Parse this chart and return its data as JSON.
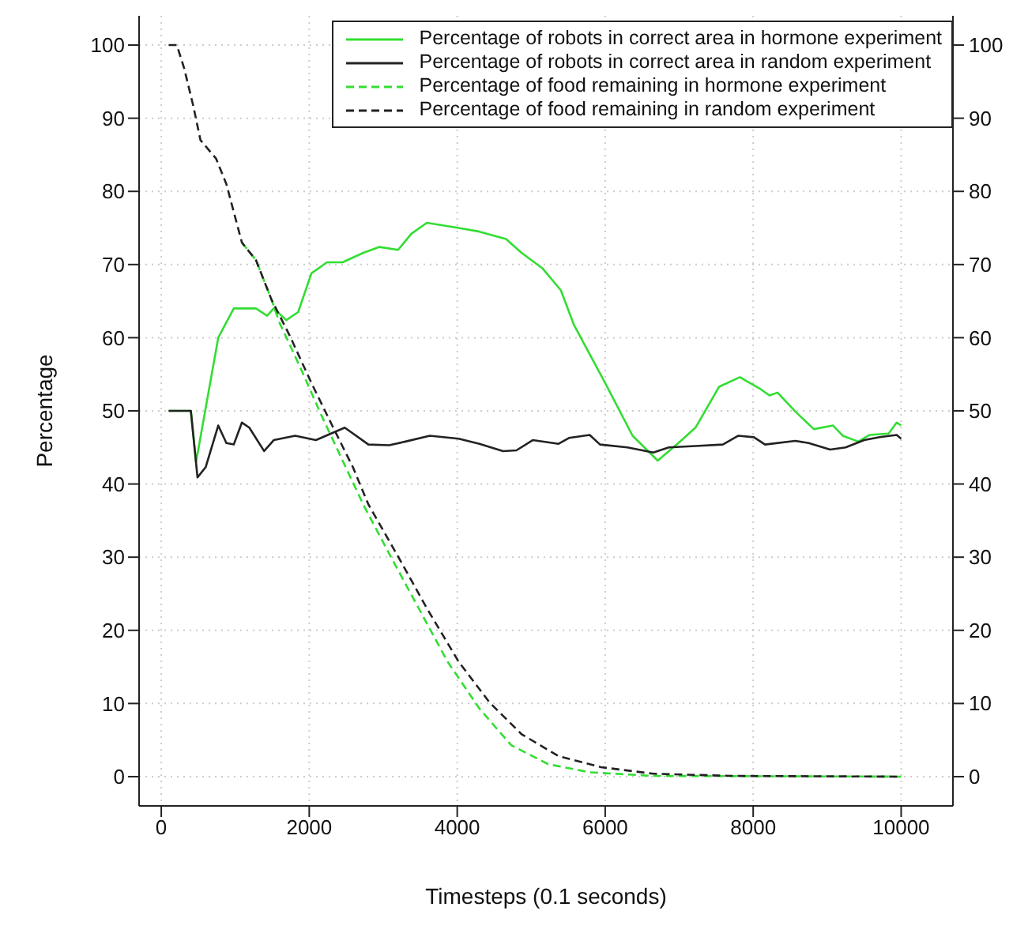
{
  "chart_data": {
    "type": "line",
    "xlabel": "Timesteps (0.1 seconds)",
    "ylabel": "Percentage",
    "xlim": [
      -300,
      10700
    ],
    "xticks": [
      0,
      2000,
      4000,
      6000,
      8000,
      10000
    ],
    "ylim": [
      -4,
      104
    ],
    "yticks": [
      0,
      10,
      20,
      30,
      40,
      50,
      60,
      70,
      80,
      90,
      100
    ],
    "y2lim": [
      -4,
      104
    ],
    "y2ticks": [
      0,
      10,
      20,
      30,
      40,
      50,
      60,
      70,
      80,
      90,
      100
    ],
    "grid": true,
    "legend": "top right",
    "series": [
      {
        "name": "Percentage of robots in correct area in hormone experiment",
        "color": "#33dd33",
        "line_style": "solid",
        "x": [
          100,
          400,
          470,
          770,
          980,
          1280,
          1430,
          1520,
          1690,
          1850,
          2030,
          2240,
          2450,
          2730,
          2950,
          3200,
          3380,
          3590,
          4020,
          4300,
          4660,
          4870,
          5150,
          5400,
          5580,
          6000,
          6370,
          6710,
          7010,
          7220,
          7540,
          7820,
          8080,
          8220,
          8330,
          8570,
          8820,
          9080,
          9210,
          9420,
          9570,
          9830,
          9940,
          10000
        ],
        "values": [
          50,
          50,
          43,
          60,
          64,
          64,
          63,
          64,
          62.4,
          63.5,
          68.8,
          70.3,
          70.3,
          71.6,
          72.4,
          72,
          74.2,
          75.7,
          75,
          74.5,
          73.5,
          71.6,
          69.5,
          66.5,
          61.7,
          53.8,
          46.6,
          43.2,
          45.8,
          47.7,
          53.3,
          54.6,
          53.1,
          52.1,
          52.5,
          49.9,
          47.5,
          48,
          46.6,
          45.8,
          46.7,
          46.9,
          48.4,
          48
        ]
      },
      {
        "name": "Percentage of robots in correct area in random experiment",
        "color": "#222222",
        "line_style": "solid",
        "x": [
          100,
          400,
          490,
          600,
          770,
          880,
          980,
          1090,
          1190,
          1390,
          1520,
          1810,
          2090,
          2480,
          2800,
          3080,
          3300,
          3630,
          4020,
          4300,
          4620,
          4800,
          5020,
          5370,
          5510,
          5790,
          5930,
          6300,
          6650,
          6860,
          7220,
          7590,
          7800,
          8010,
          8160,
          8570,
          8750,
          9040,
          9250,
          9500,
          9710,
          9940,
          10000
        ],
        "values": [
          50,
          50,
          40.9,
          42.3,
          48,
          45.6,
          45.4,
          48.4,
          47.7,
          44.5,
          46,
          46.6,
          46,
          47.7,
          45.4,
          45.3,
          45.8,
          46.6,
          46.2,
          45.5,
          44.5,
          44.6,
          46,
          45.5,
          46.3,
          46.7,
          45.4,
          45,
          44.3,
          45,
          45.2,
          45.4,
          46.6,
          46.4,
          45.4,
          45.9,
          45.6,
          44.7,
          45,
          46,
          46.4,
          46.7,
          46.2
        ]
      },
      {
        "name": "Percentage of food remaining in hormone experiment",
        "color": "#33dd33",
        "line_style": "dashed",
        "x": [
          1090,
          1280,
          1490,
          1600,
          1880,
          2160,
          2460,
          2730,
          3100,
          3480,
          3870,
          4300,
          4730,
          5230,
          5790,
          6650,
          10000
        ],
        "values": [
          73,
          70.6,
          65.2,
          62,
          55.9,
          49.5,
          43,
          37.2,
          30.1,
          23,
          15.7,
          9.3,
          4.3,
          1.7,
          0.6,
          0.1,
          0
        ]
      },
      {
        "name": "Percentage of food remaining in random experiment",
        "color": "#222222",
        "line_style": "dashed",
        "x": [
          100,
          210,
          310,
          430,
          530,
          740,
          880,
          1090,
          1280,
          1490,
          1740,
          2030,
          2310,
          2590,
          2800,
          3200,
          3590,
          4020,
          4440,
          4870,
          5370,
          5940,
          6650,
          7720,
          10000
        ],
        "values": [
          100,
          100,
          96.8,
          91.8,
          87,
          84.5,
          81,
          73,
          70.6,
          65.2,
          60.2,
          53.8,
          48,
          42.3,
          37.2,
          30.1,
          23,
          15.7,
          10.1,
          5.8,
          2.8,
          1.3,
          0.4,
          0.1,
          0
        ]
      }
    ]
  }
}
